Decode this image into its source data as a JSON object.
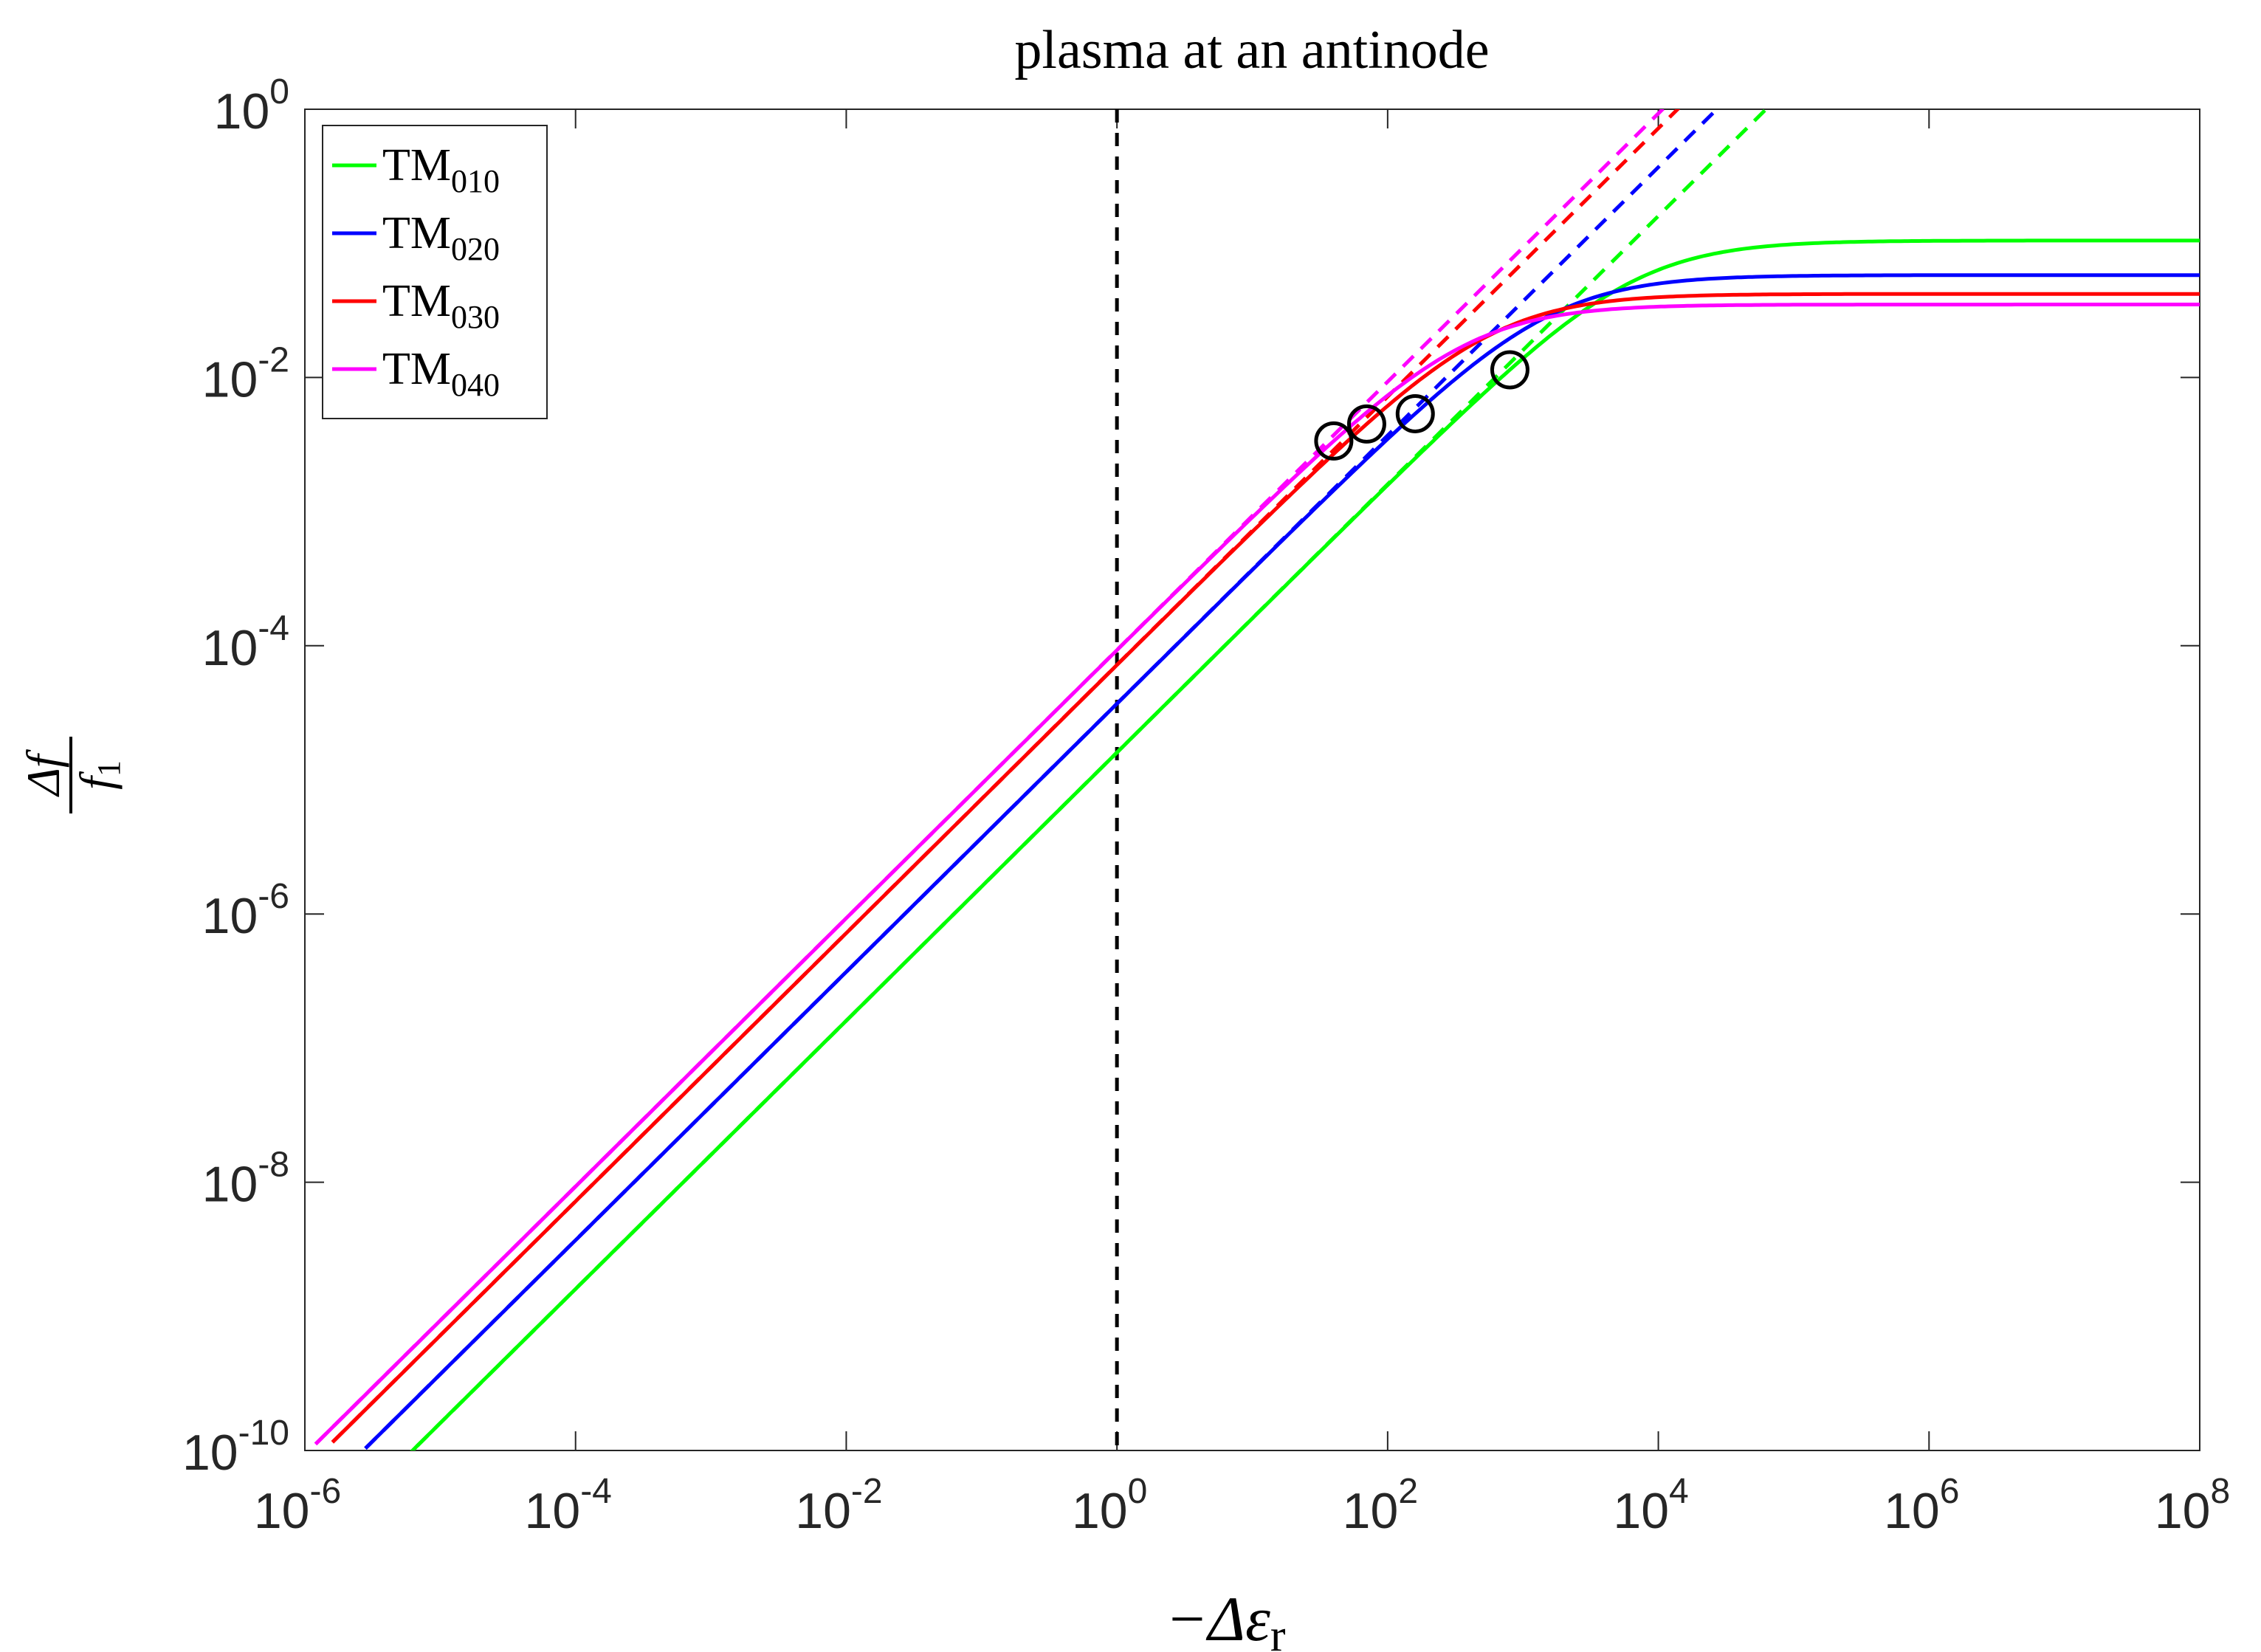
{
  "chart_data": {
    "type": "line",
    "title": "plasma at an antinode",
    "xscale": "log",
    "yscale": "log",
    "xlim": [
      1e-06,
      100000000.0
    ],
    "ylim": [
      1e-10,
      1
    ],
    "x_axis": {
      "label_prefix": "−Δε",
      "label_sub": "r",
      "ticks": [
        {
          "base": "10",
          "exp": "-6"
        },
        {
          "base": "10",
          "exp": "-4"
        },
        {
          "base": "10",
          "exp": "-2"
        },
        {
          "base": "10",
          "exp": "0"
        },
        {
          "base": "10",
          "exp": "2"
        },
        {
          "base": "10",
          "exp": "4"
        },
        {
          "base": "10",
          "exp": "6"
        },
        {
          "base": "10",
          "exp": "8"
        }
      ]
    },
    "y_axis": {
      "label_num": "Δf",
      "label_den": "f",
      "label_den_sub": "1",
      "ticks": [
        {
          "base": "10",
          "exp": "-10"
        },
        {
          "base": "10",
          "exp": "-8"
        },
        {
          "base": "10",
          "exp": "-6"
        },
        {
          "base": "10",
          "exp": "-4"
        },
        {
          "base": "10",
          "exp": "-2"
        },
        {
          "base": "10",
          "exp": "0"
        }
      ]
    },
    "vline": {
      "x": 1,
      "color": "#000000",
      "style": "dashed"
    },
    "series": [
      {
        "name": "TM",
        "sub": "010",
        "color": "#00ff00",
        "linear_coeff": 1.6e-05,
        "saturation": 0.105,
        "x_start": 5e-06,
        "marker_x": 800
      },
      {
        "name": "TM",
        "sub": "020",
        "color": "#0000ff",
        "linear_coeff": 3.7e-05,
        "saturation": 0.058,
        "x_start": 2.8e-06,
        "marker_x": 160
      },
      {
        "name": "TM",
        "sub": "030",
        "color": "#ff0000",
        "linear_coeff": 7.2e-05,
        "saturation": 0.042,
        "x_start": 1.6e-06,
        "marker_x": 70
      },
      {
        "name": "TM",
        "sub": "040",
        "color": "#ff00ff",
        "linear_coeff": 9.3e-05,
        "saturation": 0.035,
        "x_start": 1.2e-06,
        "marker_x": 40
      }
    ],
    "legend": {
      "position": "top-left"
    },
    "annotations": "dashed lines: linear small-perturbation approximation; circles: transition points"
  }
}
